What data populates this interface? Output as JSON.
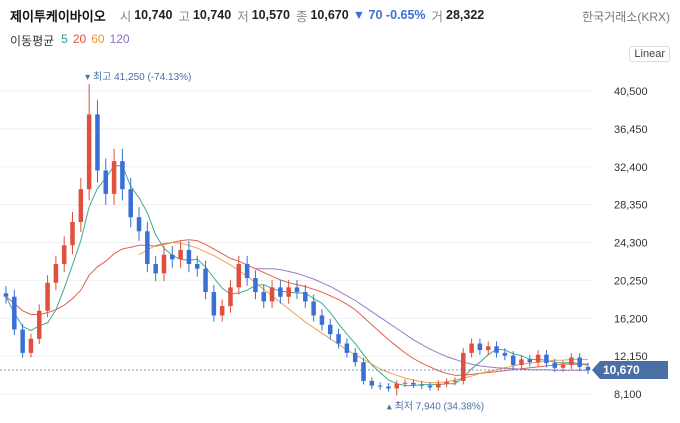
{
  "header": {
    "name": "제이투케이바이오",
    "open_label": "시",
    "open": "10,740",
    "high_label": "고",
    "high": "10,740",
    "low_label": "저",
    "low": "10,570",
    "close_label": "종",
    "close": "10,670",
    "change": "▼ 70 -0.65%",
    "volume_label": "거",
    "volume": "28,322",
    "exchange": "한국거래소(KRX)"
  },
  "ma_legend": {
    "label": "이동평균",
    "periods": [
      {
        "value": "5",
        "color": "#2e9e8a"
      },
      {
        "value": "20",
        "color": "#e0503c"
      },
      {
        "value": "60",
        "color": "#e89a35"
      },
      {
        "value": "120",
        "color": "#8a6fc0"
      }
    ]
  },
  "scale_label": "Linear",
  "annotations": {
    "high": "최고 41,250 (-74.13%)",
    "low": "최저 7,940 (34.38%)"
  },
  "price_tag": "10,670",
  "colors": {
    "up": "#e0503c",
    "down": "#3a6fd8",
    "tag": "#4a6fa5"
  },
  "chart_data": {
    "type": "candlestick",
    "y_ticks": [
      40500,
      36450,
      32400,
      28350,
      24300,
      20250,
      16200,
      12150,
      8100
    ],
    "y_tick_labels": [
      "40,500",
      "36,450",
      "32,400",
      "28,350",
      "24,300",
      "20,250",
      "16,200",
      "12,150",
      "8,100"
    ],
    "ylim": [
      7000,
      42000
    ],
    "series": [
      {
        "name": "close",
        "values": [
          18500,
          15000,
          12500,
          14000,
          17000,
          20000,
          22000,
          24000,
          26500,
          30000,
          38000,
          32000,
          29500,
          33000,
          30000,
          27000,
          25500,
          22000,
          21000,
          23000,
          22500,
          23500,
          22000,
          21500,
          19000,
          16500,
          17500,
          19500,
          22000,
          20500,
          19000,
          18000,
          19500,
          18500,
          19500,
          19000,
          18000,
          16500,
          15500,
          14500,
          13500,
          12500,
          11500,
          9500,
          9000,
          8900,
          8700,
          9200,
          9300,
          9100,
          9000,
          8800,
          9200,
          9400,
          9500,
          12500,
          13500,
          12800,
          13200,
          12500,
          12200,
          11200,
          11800,
          11500,
          12300,
          11400,
          10900,
          11200,
          12000,
          11000,
          10670
        ]
      },
      {
        "name": "MA5",
        "values": [
          18500,
          16750,
          15330,
          14880,
          15400,
          15700,
          17100,
          19400,
          21900,
          24500,
          28100,
          30100,
          31200,
          32500,
          32500,
          30300,
          29100,
          27500,
          25100,
          23700,
          22900,
          22500,
          22400,
          22500,
          21700,
          20500,
          19400,
          18800,
          18900,
          19200,
          19700,
          19800,
          19400,
          19100,
          19000,
          18900,
          18900,
          18300,
          17800,
          16800,
          15600,
          14500,
          13500,
          12300,
          11200,
          10400,
          9600,
          9200,
          9000,
          9000,
          9100,
          9100,
          9100,
          9200,
          9200,
          9900,
          10800,
          11500,
          12300,
          12900,
          12800,
          12400,
          12200,
          11800,
          11800,
          11700,
          11500,
          11400,
          11500,
          11300,
          11200
        ]
      },
      {
        "name": "MA20",
        "values": [
          18500,
          17800,
          17000,
          16600,
          16600,
          16800,
          17100,
          17600,
          18300,
          19200,
          20800,
          21700,
          22300,
          23100,
          23600,
          23800,
          24000,
          24000,
          23900,
          24100,
          24300,
          24500,
          24600,
          24500,
          24100,
          23600,
          23100,
          22600,
          22300,
          21900,
          21500,
          21100,
          20700,
          20300,
          20000,
          19800,
          19600,
          19300,
          19000,
          18600,
          18200,
          17700,
          17100,
          16300,
          15500,
          14700,
          13900,
          13200,
          12500,
          11900,
          11400,
          11000,
          10600,
          10300,
          10100,
          10100,
          10200,
          10300,
          10400,
          10500,
          10600,
          10700,
          10800,
          10900,
          11000,
          11100,
          11200,
          11300,
          11300,
          11300,
          11300
        ]
      },
      {
        "name": "MA60",
        "values": [
          null,
          null,
          null,
          null,
          null,
          null,
          null,
          null,
          null,
          null,
          null,
          null,
          null,
          null,
          null,
          null,
          23000,
          23500,
          24000,
          24200,
          24300,
          24200,
          24000,
          23700,
          23300,
          22900,
          22400,
          21900,
          21300,
          20700,
          20000,
          19300,
          18600,
          17900,
          17200,
          16500,
          15800,
          15200,
          14600,
          14000,
          13400,
          12800,
          12300,
          11800,
          11300,
          10800,
          10400,
          10100,
          9800,
          9600,
          9400,
          9300,
          9300,
          9400,
          9600,
          9800,
          10000,
          10300,
          10500,
          10700,
          10900,
          11100,
          11300,
          11400,
          11500,
          11600,
          11700,
          11700,
          11800,
          11800,
          11800
        ]
      },
      {
        "name": "MA120",
        "values": [
          null,
          null,
          null,
          null,
          null,
          null,
          null,
          null,
          null,
          null,
          null,
          null,
          null,
          null,
          null,
          null,
          null,
          null,
          null,
          null,
          null,
          null,
          null,
          null,
          null,
          null,
          null,
          null,
          null,
          null,
          21500,
          21500,
          21500,
          21400,
          21200,
          21000,
          20700,
          20400,
          20000,
          19600,
          19100,
          18600,
          18100,
          17500,
          16900,
          16300,
          15700,
          15100,
          14500,
          13900,
          13400,
          12900,
          12500,
          12100,
          11800,
          11500,
          11300,
          11100,
          11000,
          10900,
          10850,
          10800,
          10750,
          10700,
          10700,
          10700,
          10650,
          10650,
          10650,
          10650,
          10650
        ]
      }
    ],
    "high": {
      "price": 41250,
      "index": 10
    },
    "low": {
      "price": 7940,
      "index": 47
    },
    "last_price": 10670
  }
}
